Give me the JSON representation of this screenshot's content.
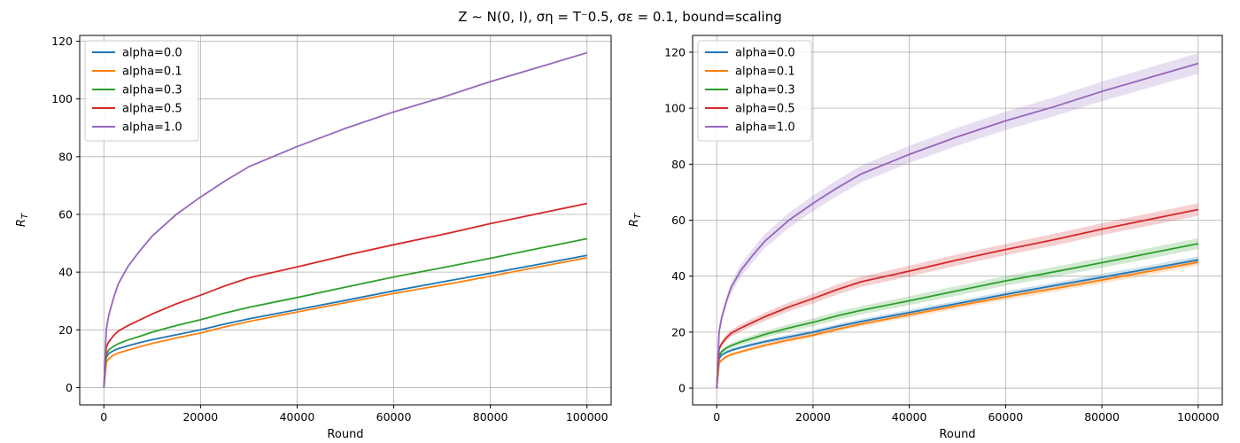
{
  "figure": {
    "suptitle": "Z ∼ N(0, I), ση = T⁻0.5, σε = 0.1, bound=scaling"
  },
  "colors": {
    "alpha_0_0": "#1f77b4",
    "alpha_0_1": "#ff7f0e",
    "alpha_0_3": "#2ca02c",
    "alpha_0_5": "#d62728",
    "alpha_1_0": "#9467bd",
    "grid": "#b0b0b0"
  },
  "chart_data": [
    {
      "type": "line",
      "title": "",
      "xlabel": "Round",
      "ylabel": "R_T",
      "xlim": [
        -5000,
        105000
      ],
      "ylim": [
        -6,
        122
      ],
      "xticks": [
        0,
        20000,
        40000,
        60000,
        80000,
        100000
      ],
      "yticks": [
        0,
        20,
        40,
        60,
        80,
        100,
        120
      ],
      "grid": true,
      "legend_position": "top-left",
      "shaded_band": false,
      "x": [
        0,
        500,
        1000,
        2000,
        3000,
        5000,
        7500,
        10000,
        15000,
        20000,
        25000,
        30000,
        40000,
        50000,
        60000,
        70000,
        80000,
        90000,
        100000
      ],
      "series": [
        {
          "name": "alpha=0.0",
          "color": "#1f77b4",
          "values": [
            0,
            10.5,
            11.8,
            12.8,
            13.5,
            14.5,
            15.6,
            16.6,
            18.3,
            20.0,
            22.0,
            23.8,
            27.0,
            30.2,
            33.5,
            36.6,
            39.6,
            42.7,
            45.8
          ]
        },
        {
          "name": "alpha=0.1",
          "color": "#ff7f0e",
          "values": [
            0,
            8.8,
            10.0,
            11.2,
            12.0,
            13.0,
            14.2,
            15.3,
            17.2,
            18.9,
            21.0,
            22.9,
            26.2,
            29.4,
            32.6,
            35.5,
            38.6,
            41.8,
            45.0
          ]
        },
        {
          "name": "alpha=0.3",
          "color": "#2ca02c",
          "values": [
            0,
            11.6,
            13.0,
            14.3,
            15.2,
            16.5,
            17.8,
            19.2,
            21.5,
            23.5,
            25.8,
            27.8,
            31.2,
            34.8,
            38.3,
            41.5,
            44.8,
            48.2,
            51.6
          ]
        },
        {
          "name": "alpha=0.5",
          "color": "#d62728",
          "values": [
            0,
            14.0,
            15.8,
            18.0,
            19.6,
            21.5,
            23.5,
            25.5,
            29.0,
            32.0,
            35.2,
            38.0,
            41.8,
            45.8,
            49.5,
            53.0,
            56.8,
            60.3,
            63.8
          ]
        },
        {
          "name": "alpha=1.0",
          "color": "#9467bd",
          "values": [
            0,
            20.0,
            25.0,
            31.0,
            36.0,
            42.0,
            47.5,
            52.5,
            60.0,
            66.0,
            71.5,
            76.5,
            83.5,
            89.8,
            95.5,
            100.5,
            106.0,
            111.0,
            116.0
          ]
        }
      ]
    },
    {
      "type": "line",
      "title": "",
      "xlabel": "Round",
      "ylabel": "R_T",
      "xlim": [
        -5000,
        105000
      ],
      "ylim": [
        -6,
        126
      ],
      "xticks": [
        0,
        20000,
        40000,
        60000,
        80000,
        100000
      ],
      "yticks": [
        0,
        20,
        40,
        60,
        80,
        100,
        120
      ],
      "grid": true,
      "legend_position": "top-left",
      "shaded_band": true,
      "x": [
        0,
        500,
        1000,
        2000,
        3000,
        5000,
        7500,
        10000,
        15000,
        20000,
        25000,
        30000,
        40000,
        50000,
        60000,
        70000,
        80000,
        90000,
        100000
      ],
      "series": [
        {
          "name": "alpha=0.0",
          "color": "#1f77b4",
          "band": [
            0,
            0.4,
            0.5,
            0.5,
            0.6,
            0.6,
            0.7,
            0.7,
            0.8,
            0.8,
            0.9,
            0.9,
            1.0,
            1.0,
            1.1,
            1.1,
            1.2,
            1.2,
            1.3
          ],
          "values": [
            0,
            10.5,
            11.8,
            12.8,
            13.5,
            14.5,
            15.6,
            16.6,
            18.3,
            20.0,
            22.0,
            23.8,
            27.0,
            30.2,
            33.5,
            36.6,
            39.6,
            42.7,
            45.8
          ]
        },
        {
          "name": "alpha=0.1",
          "color": "#ff7f0e",
          "band": [
            0,
            0.4,
            0.5,
            0.5,
            0.6,
            0.6,
            0.7,
            0.7,
            0.8,
            0.8,
            0.9,
            0.9,
            1.0,
            1.0,
            1.1,
            1.1,
            1.2,
            1.2,
            1.3
          ],
          "values": [
            0,
            8.8,
            10.0,
            11.2,
            12.0,
            13.0,
            14.2,
            15.3,
            17.2,
            18.9,
            21.0,
            22.9,
            26.2,
            29.4,
            32.6,
            35.5,
            38.6,
            41.8,
            45.0
          ]
        },
        {
          "name": "alpha=0.3",
          "color": "#2ca02c",
          "band": [
            0,
            0.6,
            0.7,
            0.8,
            0.9,
            1.0,
            1.1,
            1.2,
            1.3,
            1.4,
            1.5,
            1.5,
            1.6,
            1.7,
            1.7,
            1.8,
            1.8,
            1.9,
            1.9
          ],
          "values": [
            0,
            11.6,
            13.0,
            14.3,
            15.2,
            16.5,
            17.8,
            19.2,
            21.5,
            23.5,
            25.8,
            27.8,
            31.2,
            34.8,
            38.3,
            41.5,
            44.8,
            48.2,
            51.6
          ]
        },
        {
          "name": "alpha=0.5",
          "color": "#d62728",
          "band": [
            0,
            0.8,
            1.0,
            1.1,
            1.2,
            1.3,
            1.4,
            1.5,
            1.6,
            1.7,
            1.8,
            1.8,
            1.9,
            2.0,
            2.0,
            2.1,
            2.1,
            2.2,
            2.2
          ],
          "values": [
            0,
            14.0,
            15.8,
            18.0,
            19.6,
            21.5,
            23.5,
            25.5,
            29.0,
            32.0,
            35.2,
            38.0,
            41.8,
            45.8,
            49.5,
            53.0,
            56.8,
            60.3,
            63.8
          ]
        },
        {
          "name": "alpha=1.0",
          "color": "#9467bd",
          "band": [
            0,
            1.2,
            1.5,
            1.8,
            2.0,
            2.2,
            2.4,
            2.5,
            2.7,
            2.8,
            2.9,
            3.0,
            3.1,
            3.2,
            3.3,
            3.4,
            3.5,
            3.6,
            3.7
          ],
          "values": [
            0,
            20.0,
            25.0,
            31.0,
            36.0,
            42.0,
            47.5,
            52.5,
            60.0,
            66.0,
            71.5,
            76.5,
            83.5,
            89.8,
            95.5,
            100.5,
            106.0,
            111.0,
            116.0
          ]
        }
      ]
    }
  ]
}
